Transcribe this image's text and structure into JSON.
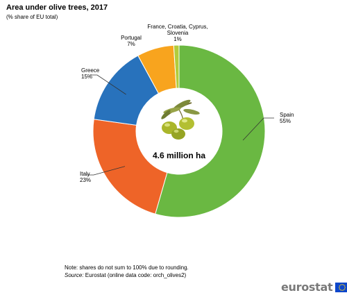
{
  "title": "Area under olive trees, 2017",
  "subtitle": "(% share of EU total)",
  "chart_data": {
    "type": "pie",
    "categories": [
      "Spain",
      "Italy",
      "Greece",
      "Portugal",
      "France, Croatia, Cyprus, Slovenia"
    ],
    "values": [
      55,
      23,
      15,
      7,
      1
    ],
    "value_labels": [
      "55%",
      "23%",
      "15%",
      "7%",
      "1%"
    ],
    "label_lines": [
      [
        "Spain",
        "55%"
      ],
      [
        "Italy",
        "23%"
      ],
      [
        "Greece",
        "15%"
      ],
      [
        "Portugal",
        "7%"
      ],
      [
        "France, Croatia, Cyprus,",
        "Slovenia",
        "1%"
      ]
    ],
    "colors": [
      "#6ab842",
      "#ee6428",
      "#2872bc",
      "#f8a41e",
      "#b2cc3c"
    ],
    "center_label": "4.6 million ha",
    "donut": true
  },
  "note": {
    "text": "Note: shares do not sum to 100% due to rounding.",
    "source_key": "Source:",
    "source_text": " Eurostat (online data code: orch_olives2)"
  },
  "footer": {
    "brand": "eurostat",
    "flag_color": "#0e47cb",
    "star_color": "#ffd617"
  }
}
